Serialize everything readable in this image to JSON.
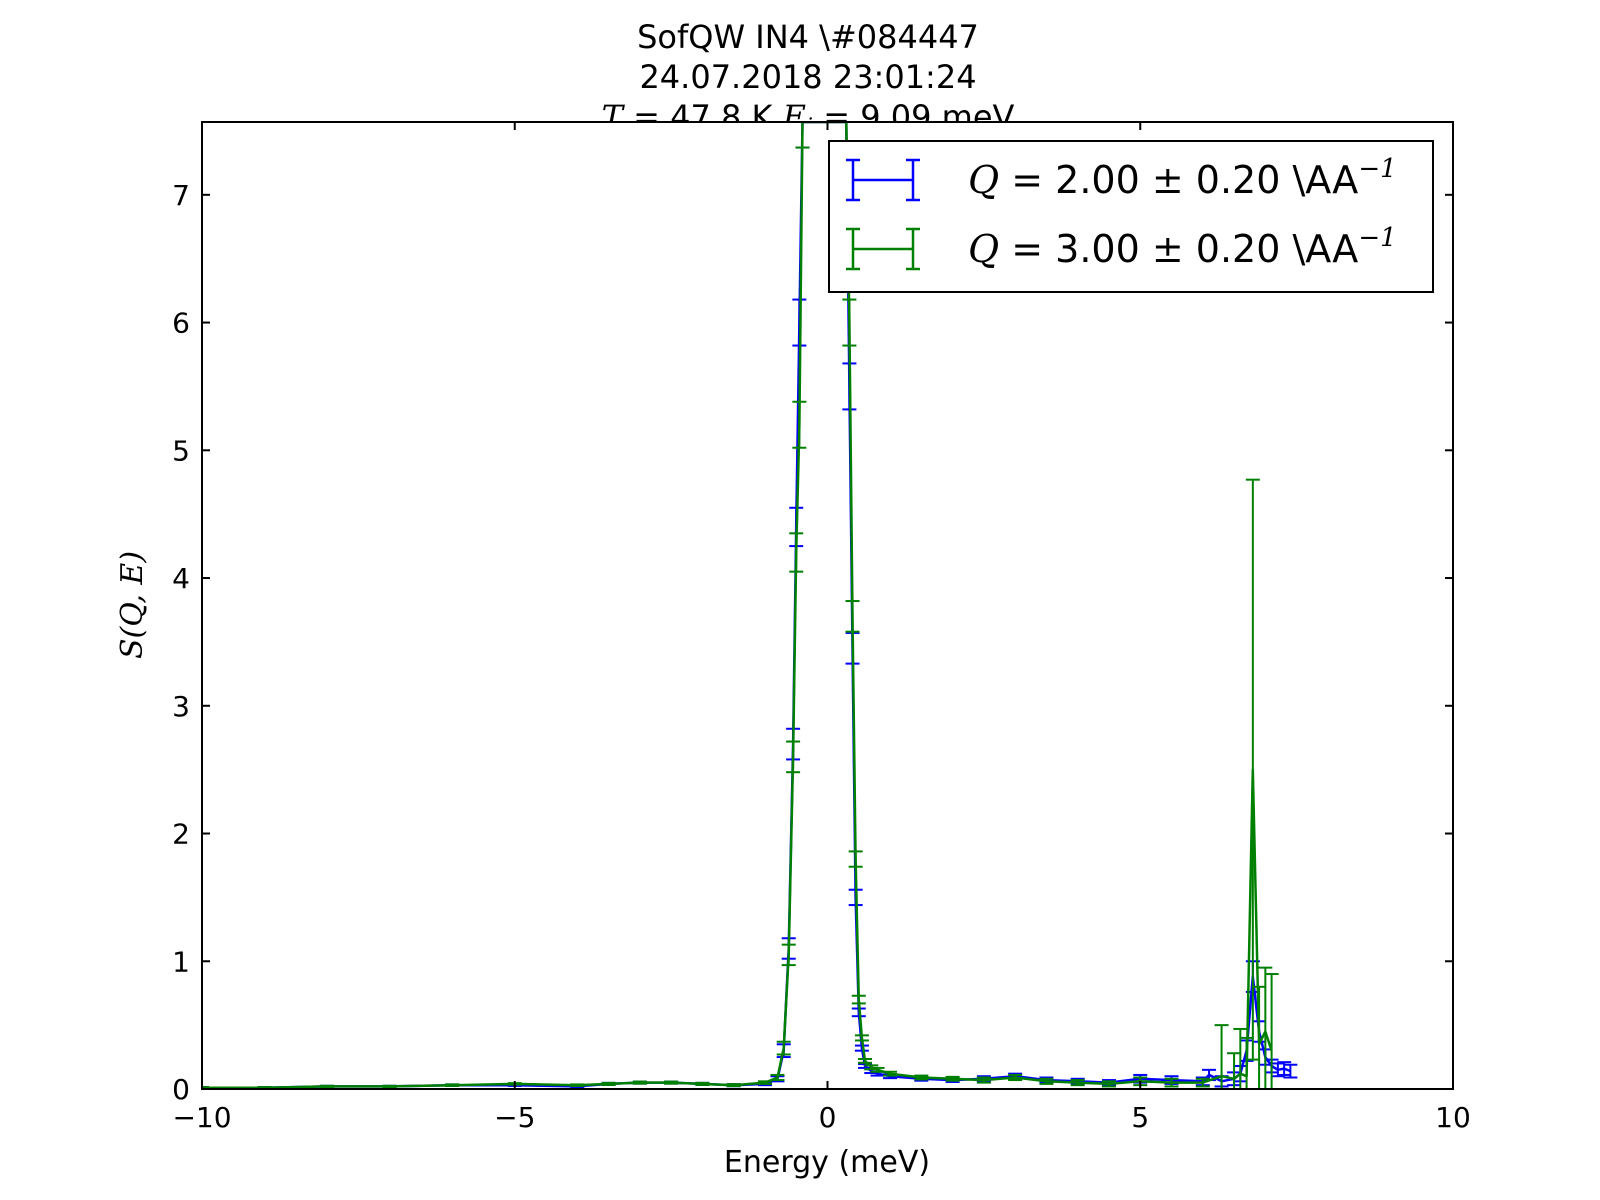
{
  "chart_data": {
    "type": "line",
    "title_lines": [
      "SofQW IN4 \\#084447",
      "24.07.2018 23:01:24"
    ],
    "title_line3": {
      "t_symbol": "T",
      "t_text": " = 47.8 K ",
      "e_symbol": "E",
      "e_sub": "i",
      "e_text": " = 9.09 meV"
    },
    "xlabel": "Energy (meV)",
    "ylabel": {
      "prefix": "S",
      "args": "(Q, E)"
    },
    "xlim": [
      -10,
      10
    ],
    "ylim": [
      0,
      7.57
    ],
    "xticks": [
      -10,
      -5,
      0,
      5,
      10
    ],
    "xtick_labels": [
      "−10",
      "−5",
      "0",
      "5",
      "10"
    ],
    "yticks": [
      0,
      1,
      2,
      3,
      4,
      5,
      6,
      7
    ],
    "ytick_labels": [
      "0",
      "1",
      "2",
      "3",
      "4",
      "5",
      "6",
      "7"
    ],
    "grid": false,
    "legend_position": "top-right",
    "series": [
      {
        "name": "Q = 2.00 ± 0.20 \\AA⁻¹",
        "legend": {
          "q": "Q",
          "text": " = 2.00 ",
          "pm": "±",
          "text2": " 0.20 \\AA",
          "sup": "−1"
        },
        "color": "#0000ff",
        "x": [
          -10,
          -9,
          -8,
          -7,
          -6,
          -5,
          -4,
          -3.5,
          -3,
          -2.5,
          -2,
          -1.5,
          -1,
          -0.8,
          -0.7,
          -0.62,
          -0.55,
          -0.5,
          -0.45,
          -0.4,
          0.3,
          0.35,
          0.4,
          0.45,
          0.5,
          0.55,
          0.6,
          0.7,
          0.8,
          1,
          1.5,
          2,
          2.5,
          3,
          3.5,
          4,
          4.5,
          5,
          5.5,
          6,
          6.1,
          6.3,
          6.5,
          6.6,
          6.7,
          6.8,
          6.9,
          7,
          7.1,
          7.2,
          7.3,
          7.4
        ],
        "y": [
          0.01,
          0.01,
          0.02,
          0.02,
          0.03,
          0.03,
          0.02,
          0.04,
          0.05,
          0.05,
          0.04,
          0.03,
          0.04,
          0.08,
          0.3,
          1.1,
          2.7,
          4.4,
          6.0,
          7.57,
          7.57,
          5.5,
          3.45,
          1.5,
          0.6,
          0.32,
          0.18,
          0.14,
          0.12,
          0.1,
          0.08,
          0.07,
          0.08,
          0.1,
          0.07,
          0.06,
          0.05,
          0.08,
          0.07,
          0.06,
          0.11,
          0.06,
          0.08,
          0.12,
          0.3,
          0.88,
          0.45,
          0.25,
          0.18,
          0.15,
          0.16,
          0.14
        ],
        "yerr": [
          0.005,
          0.005,
          0.005,
          0.005,
          0.006,
          0.006,
          0.006,
          0.008,
          0.008,
          0.008,
          0.008,
          0.008,
          0.01,
          0.02,
          0.05,
          0.08,
          0.12,
          0.15,
          0.18,
          0.2,
          0.2,
          0.18,
          0.12,
          0.06,
          0.03,
          0.02,
          0.015,
          0.015,
          0.015,
          0.015,
          0.015,
          0.015,
          0.02,
          0.02,
          0.02,
          0.02,
          0.02,
          0.03,
          0.03,
          0.03,
          0.04,
          0.04,
          0.05,
          0.06,
          0.08,
          0.12,
          0.08,
          0.06,
          0.05,
          0.05,
          0.05,
          0.05
        ]
      },
      {
        "name": "Q = 3.00 ± 0.20 \\AA⁻¹",
        "legend": {
          "q": "Q",
          "text": " = 3.00 ",
          "pm": "±",
          "text2": " 0.20 \\AA",
          "sup": "−1"
        },
        "color": "#008000",
        "x": [
          -10,
          -9,
          -8,
          -7,
          -6,
          -5,
          -4,
          -3.5,
          -3,
          -2.5,
          -2,
          -1.5,
          -1,
          -0.8,
          -0.7,
          -0.62,
          -0.55,
          -0.5,
          -0.45,
          -0.4,
          0.3,
          0.35,
          0.4,
          0.45,
          0.5,
          0.55,
          0.6,
          0.7,
          0.8,
          1,
          1.5,
          2,
          2.5,
          3,
          3.5,
          4,
          4.5,
          5,
          5.5,
          6,
          6.3,
          6.5,
          6.6,
          6.7,
          6.8,
          6.9,
          7,
          7.1
        ],
        "y": [
          0.01,
          0.01,
          0.02,
          0.02,
          0.03,
          0.04,
          0.03,
          0.04,
          0.05,
          0.05,
          0.04,
          0.03,
          0.05,
          0.09,
          0.32,
          1.05,
          2.6,
          4.2,
          5.2,
          7.57,
          7.57,
          6.0,
          3.7,
          1.8,
          0.7,
          0.4,
          0.22,
          0.17,
          0.15,
          0.12,
          0.09,
          0.08,
          0.07,
          0.09,
          0.06,
          0.05,
          0.04,
          0.06,
          0.05,
          0.05,
          0.1,
          0.08,
          0.12,
          0.1,
          2.5,
          0.35,
          0.45,
          0.3
        ],
        "yerr": [
          0.005,
          0.005,
          0.005,
          0.005,
          0.006,
          0.006,
          0.006,
          0.008,
          0.008,
          0.008,
          0.008,
          0.008,
          0.01,
          0.02,
          0.05,
          0.08,
          0.12,
          0.15,
          0.18,
          0.2,
          0.2,
          0.18,
          0.12,
          0.06,
          0.03,
          0.02,
          0.015,
          0.015,
          0.015,
          0.015,
          0.015,
          0.015,
          0.02,
          0.02,
          0.02,
          0.02,
          0.02,
          0.03,
          0.03,
          0.03,
          0.4,
          0.2,
          0.35,
          0.3,
          2.27,
          0.45,
          0.5,
          0.6
        ]
      }
    ]
  }
}
